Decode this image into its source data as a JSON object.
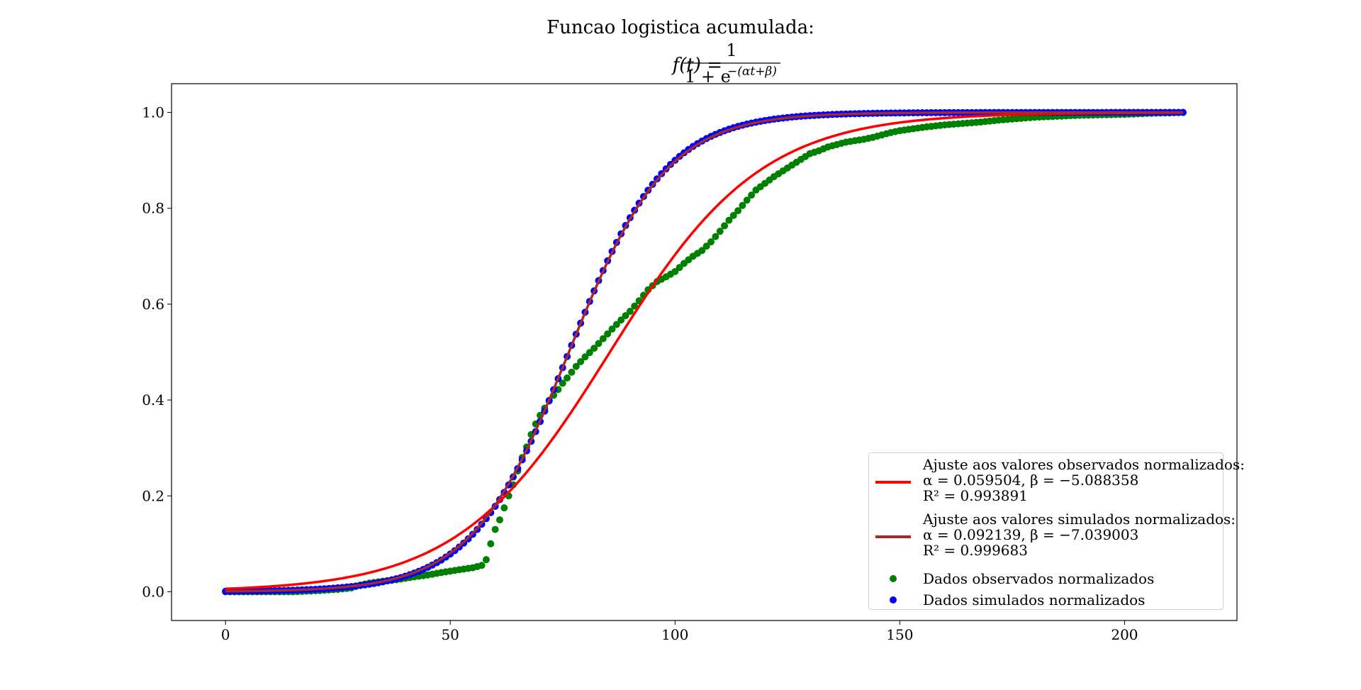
{
  "chart_data": {
    "type": "scatter",
    "title_line1": "Funcao logistica acumulada:",
    "formula": {
      "lhs": "f(t) =",
      "numerator": "1",
      "denominator": "1 + e",
      "exponent": "−(αt+β)"
    },
    "xlabel": "",
    "ylabel": "",
    "xlim": [
      -12,
      225
    ],
    "ylim": [
      -0.06,
      1.06
    ],
    "xticks": [
      "0",
      "50",
      "100",
      "150",
      "200"
    ],
    "xtick_values": [
      0,
      50,
      100,
      150,
      200
    ],
    "yticks": [
      "0.0",
      "0.2",
      "0.4",
      "0.6",
      "0.8",
      "1.0"
    ],
    "ytick_values": [
      0.0,
      0.2,
      0.4,
      0.6,
      0.8,
      1.0
    ],
    "grid": false,
    "legend_position": "lower-right",
    "series": [
      {
        "name": "Ajuste aos valores observados normalizados:",
        "kind": "line",
        "color": "#ff0000",
        "alpha": 0.059504,
        "beta": -5.088358,
        "label_lines": [
          "Ajuste aos valores observados normalizados:",
          "α = 0.059504, β = −5.088358",
          "R² = 0.993891"
        ]
      },
      {
        "name": "Ajuste aos valores simulados normalizados:",
        "kind": "line",
        "color": "#a52a2a",
        "alpha": 0.092139,
        "beta": -7.039003,
        "label_lines": [
          "Ajuste aos valores simulados normalizados:",
          "α = 0.092139, β = −7.039003",
          "R² = 0.999683"
        ]
      },
      {
        "name": "Dados observados normalizados",
        "kind": "scatter",
        "color": "#008000",
        "x_range": [
          0,
          213
        ],
        "points": [
          [
            0,
            0
          ],
          [
            5,
            0
          ],
          [
            10,
            0
          ],
          [
            15,
            0
          ],
          [
            20,
            0.002
          ],
          [
            25,
            0.005
          ],
          [
            28,
            0.008
          ],
          [
            30,
            0.014
          ],
          [
            32,
            0.018
          ],
          [
            35,
            0.022
          ],
          [
            38,
            0.025
          ],
          [
            40,
            0.028
          ],
          [
            42,
            0.031
          ],
          [
            45,
            0.035
          ],
          [
            48,
            0.04
          ],
          [
            50,
            0.043
          ],
          [
            52,
            0.046
          ],
          [
            55,
            0.05
          ],
          [
            57,
            0.055
          ],
          [
            58,
            0.067
          ],
          [
            59,
            0.1
          ],
          [
            60,
            0.13
          ],
          [
            61,
            0.15
          ],
          [
            62,
            0.175
          ],
          [
            63,
            0.2
          ],
          [
            64,
            0.223
          ],
          [
            65,
            0.252
          ],
          [
            66,
            0.28
          ],
          [
            67,
            0.302
          ],
          [
            68,
            0.328
          ],
          [
            69,
            0.35
          ],
          [
            70,
            0.368
          ],
          [
            71,
            0.383
          ],
          [
            72,
            0.398
          ],
          [
            73,
            0.41
          ],
          [
            74,
            0.422
          ],
          [
            75,
            0.435
          ],
          [
            76,
            0.446
          ],
          [
            77,
            0.458
          ],
          [
            78,
            0.47
          ],
          [
            80,
            0.49
          ],
          [
            82,
            0.508
          ],
          [
            84,
            0.528
          ],
          [
            86,
            0.548
          ],
          [
            88,
            0.567
          ],
          [
            90,
            0.585
          ],
          [
            92,
            0.607
          ],
          [
            94,
            0.63
          ],
          [
            96,
            0.647
          ],
          [
            98,
            0.657
          ],
          [
            100,
            0.668
          ],
          [
            102,
            0.685
          ],
          [
            104,
            0.7
          ],
          [
            106,
            0.712
          ],
          [
            108,
            0.73
          ],
          [
            110,
            0.752
          ],
          [
            112,
            0.775
          ],
          [
            114,
            0.795
          ],
          [
            116,
            0.817
          ],
          [
            118,
            0.838
          ],
          [
            120,
            0.852
          ],
          [
            122,
            0.866
          ],
          [
            124,
            0.878
          ],
          [
            126,
            0.89
          ],
          [
            128,
            0.902
          ],
          [
            130,
            0.914
          ],
          [
            132,
            0.92
          ],
          [
            134,
            0.928
          ],
          [
            136,
            0.933
          ],
          [
            138,
            0.938
          ],
          [
            140,
            0.941
          ],
          [
            142,
            0.944
          ],
          [
            144,
            0.948
          ],
          [
            146,
            0.953
          ],
          [
            148,
            0.958
          ],
          [
            150,
            0.962
          ],
          [
            153,
            0.966
          ],
          [
            156,
            0.97
          ],
          [
            160,
            0.974
          ],
          [
            164,
            0.977
          ],
          [
            168,
            0.98
          ],
          [
            172,
            0.984
          ],
          [
            176,
            0.987
          ],
          [
            180,
            0.99
          ],
          [
            185,
            0.992
          ],
          [
            190,
            0.994
          ],
          [
            195,
            0.995
          ],
          [
            200,
            0.996
          ],
          [
            205,
            0.998
          ],
          [
            210,
            0.999
          ],
          [
            213,
            1.0
          ]
        ]
      },
      {
        "name": "Dados simulados normalizados",
        "kind": "scatter",
        "color": "#0000ff",
        "x_range": [
          0,
          213
        ],
        "points_from_fit": {
          "alpha": 0.0932,
          "beta": -7.12
        }
      }
    ],
    "legend": [
      {
        "marker": "line",
        "color": "#ff0000",
        "lines": [
          "Ajuste aos valores observados normalizados:",
          "α = 0.059504, β = −5.088358",
          "R² = 0.993891"
        ]
      },
      {
        "marker": "line",
        "color": "#a52a2a",
        "lines": [
          "Ajuste aos valores simulados normalizados:",
          "α = 0.092139, β = −7.039003",
          "R² = 0.999683"
        ]
      },
      {
        "marker": "dot",
        "color": "#008000",
        "lines": [
          "Dados observados normalizados"
        ]
      },
      {
        "marker": "dot",
        "color": "#0000ff",
        "lines": [
          "Dados simulados normalizados"
        ]
      }
    ]
  }
}
